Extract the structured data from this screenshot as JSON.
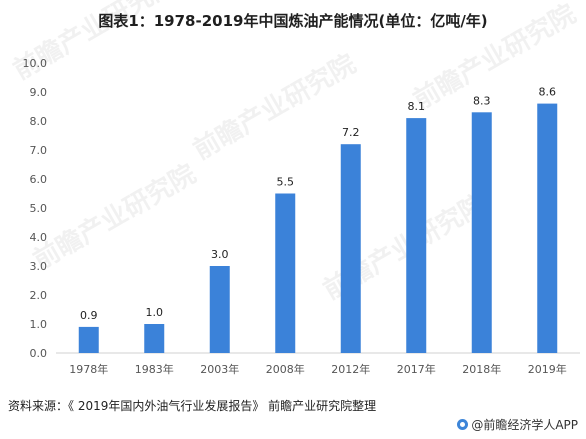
{
  "page": {
    "title": "图表1：1978-2019年中国炼油产能情况(单位：亿吨/年)",
    "source": "资料来源：《 2019年国内外油气行业发展报告》 前瞻产业研究院整理",
    "brand": "@前瞻经济学人APP",
    "watermark": "前瞻产业研究院"
  },
  "colors": {
    "bar": "#3b82d9",
    "axis": "#d0d0d0"
  },
  "chart_data": {
    "type": "bar",
    "title": "图表1：1978-2019年中国炼油产能情况(单位：亿吨/年)",
    "xlabel": "",
    "ylabel": "",
    "categories": [
      "1978年",
      "1983年",
      "2003年",
      "2008年",
      "2012年",
      "2017年",
      "2018年",
      "2019年"
    ],
    "values": [
      0.9,
      1.0,
      3.0,
      5.5,
      7.2,
      8.1,
      8.3,
      8.6
    ],
    "value_labels": [
      "0.9",
      "1.0",
      "3.0",
      "5.5",
      "7.2",
      "8.1",
      "8.3",
      "8.6"
    ],
    "ylim": [
      0,
      10
    ],
    "yticks": [
      "0.0",
      "1.0",
      "2.0",
      "3.0",
      "4.0",
      "5.0",
      "6.0",
      "7.0",
      "8.0",
      "9.0",
      "10.0"
    ],
    "grid": false,
    "legend": "none"
  }
}
